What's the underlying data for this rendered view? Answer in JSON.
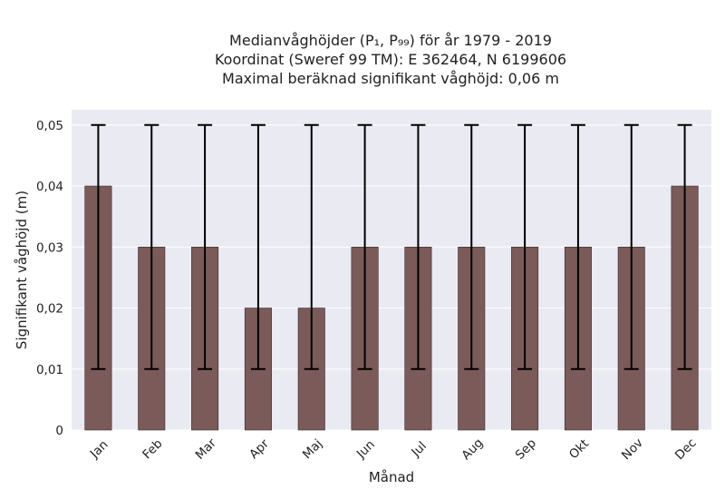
{
  "title_lines": [
    "Medianvåghöjder (P₁, P₉₉) för år 1979 - 2019",
    "Koordinat (Sweref 99 TM): E 362464, N 6199606",
    "Maximal beräknad signifikant våghöjd: 0,06 m"
  ],
  "chart_data": {
    "type": "bar",
    "title": "Medianvåghöjder (P₁, P₉₉) för år 1979 - 2019",
    "xlabel": "Månad",
    "ylabel": "Signifikant våghöjd (m)",
    "categories": [
      "Jan",
      "Feb",
      "Mar",
      "Apr",
      "Maj",
      "Jun",
      "Jul",
      "Aug",
      "Sep",
      "Okt",
      "Nov",
      "Dec"
    ],
    "values": [
      0.04,
      0.03,
      0.03,
      0.02,
      0.02,
      0.03,
      0.03,
      0.03,
      0.03,
      0.03,
      0.03,
      0.04
    ],
    "error_low": [
      0.01,
      0.01,
      0.01,
      0.01,
      0.01,
      0.01,
      0.01,
      0.01,
      0.01,
      0.01,
      0.01,
      0.01
    ],
    "error_high": [
      0.05,
      0.05,
      0.05,
      0.05,
      0.05,
      0.05,
      0.05,
      0.05,
      0.05,
      0.05,
      0.05,
      0.05
    ],
    "ylim": [
      0,
      0.0525
    ],
    "yticks": [
      0,
      0.01,
      0.02,
      0.03,
      0.04,
      0.05
    ],
    "ytick_labels": [
      "0",
      "0,01",
      "0,02",
      "0,03",
      "0,04",
      "0,05"
    ],
    "grid": true,
    "colors": {
      "bar": "#7b5a5a",
      "bar_edge": "#3a2a2a",
      "error": "#000000",
      "plot_bg": "#eaeaf2",
      "grid": "#ffffff"
    }
  }
}
